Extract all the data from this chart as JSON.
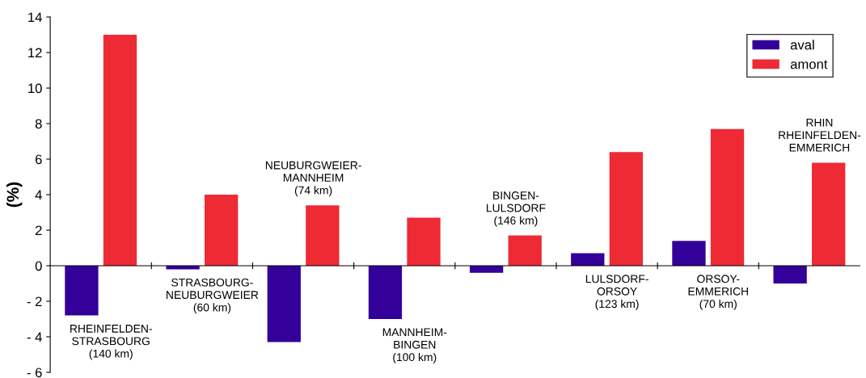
{
  "chart_data": {
    "type": "bar",
    "ylabel": "(%)",
    "categories": [
      "RHEINFELDEN-\nSTRASBOURG\n(140 km)",
      "STRASBOURG-\nNEUBURGWEIER\n(60 km)",
      "NEUBURGWEIER-\nMANNHEIM\n(74 km)",
      "MANNHEIM-\nBINGEN\n(100 km)",
      "BINGEN-\nLULSDORF\n(146 km)",
      "LULSDORF-\nORSOY\n(123 km)",
      "ORSOY-\nEMMERICH\n(70 km)",
      "RHIN\nRHEINFELDEN-\nEMMERICH"
    ],
    "series": [
      {
        "name": "aval",
        "color": "#330099",
        "values": [
          -2.8,
          -0.2,
          -4.3,
          -3.0,
          -0.4,
          0.7,
          1.4,
          -1.0
        ]
      },
      {
        "name": "amont",
        "color": "#ee2a35",
        "values": [
          13.0,
          4.0,
          3.4,
          2.7,
          1.7,
          6.4,
          7.7,
          5.8
        ]
      }
    ],
    "ylim": [
      -6,
      14
    ],
    "yticks": [
      {
        "value": -6,
        "label": "- 6"
      },
      {
        "value": -4,
        "label": "- 4"
      },
      {
        "value": -2,
        "label": "- 2"
      },
      0,
      2,
      4,
      6,
      8,
      10,
      12,
      14
    ],
    "grid": false,
    "legend": "top right"
  }
}
